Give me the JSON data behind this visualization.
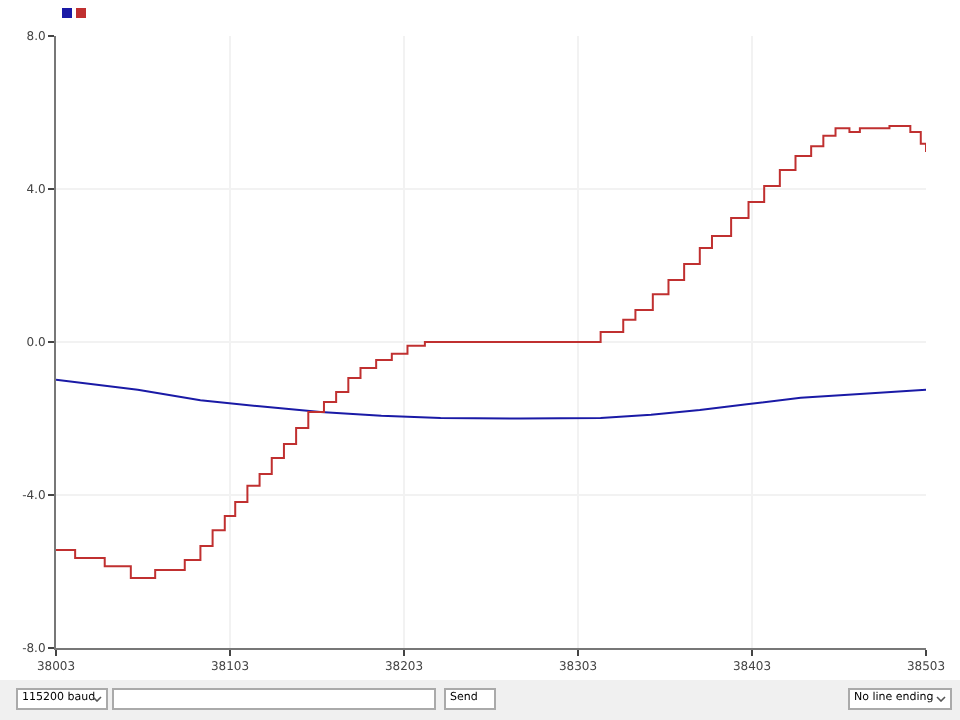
{
  "chart_data": {
    "type": "step",
    "xlim": [
      38003,
      38503
    ],
    "xticks": [
      38003,
      38103,
      38203,
      38303,
      38403,
      38503
    ],
    "ylim": [
      -8,
      8
    ],
    "yticks": [
      {
        "value": -8,
        "label": "-8.0"
      },
      {
        "value": -4,
        "label": "-4.0"
      },
      {
        "value": 0,
        "label": "0.0"
      },
      {
        "value": 4,
        "label": "4.0"
      },
      {
        "value": 8,
        "label": "8.0"
      }
    ],
    "grid": true,
    "series": [
      {
        "color": "#1a1aa6",
        "type": "line",
        "x": [
          38003,
          38050,
          38086,
          38120,
          38155,
          38190,
          38224,
          38270,
          38316,
          38345,
          38373,
          38400,
          38431,
          38465,
          38503
        ],
        "values": [
          -0.99,
          -1.25,
          -1.52,
          -1.68,
          -1.83,
          -1.93,
          -1.99,
          -2.0,
          -1.99,
          -1.9,
          -1.78,
          -1.63,
          -1.46,
          -1.36,
          -1.25
        ]
      },
      {
        "color": "#c03030",
        "x": [
          38003,
          38014,
          38031,
          38046,
          38060,
          38077,
          38086,
          38093,
          38100,
          38106,
          38113,
          38120,
          38127,
          38134,
          38141,
          38148,
          38157,
          38164,
          38171,
          38178,
          38187,
          38196,
          38205,
          38215,
          38316,
          38329,
          38336,
          38346,
          38355,
          38364,
          38373,
          38380,
          38391,
          38401,
          38410,
          38419,
          38428,
          38437,
          38444,
          38451,
          38459,
          38465,
          38482,
          38494,
          38500,
          38503
        ],
        "values": [
          -5.44,
          -5.65,
          -5.86,
          -6.17,
          -5.96,
          -5.7,
          -5.33,
          -4.92,
          -4.55,
          -4.18,
          -3.76,
          -3.45,
          -3.03,
          -2.67,
          -2.25,
          -1.83,
          -1.57,
          -1.31,
          -0.94,
          -0.68,
          -0.47,
          -0.31,
          -0.1,
          0,
          0.26,
          0.58,
          0.84,
          1.25,
          1.62,
          2.04,
          2.46,
          2.77,
          3.24,
          3.66,
          4.08,
          4.5,
          4.86,
          5.12,
          5.39,
          5.59,
          5.49,
          5.59,
          5.65,
          5.49,
          5.18,
          4.97
        ]
      }
    ],
    "annotations": [
      "115200 baud",
      "Send",
      "No line ending"
    ]
  }
}
